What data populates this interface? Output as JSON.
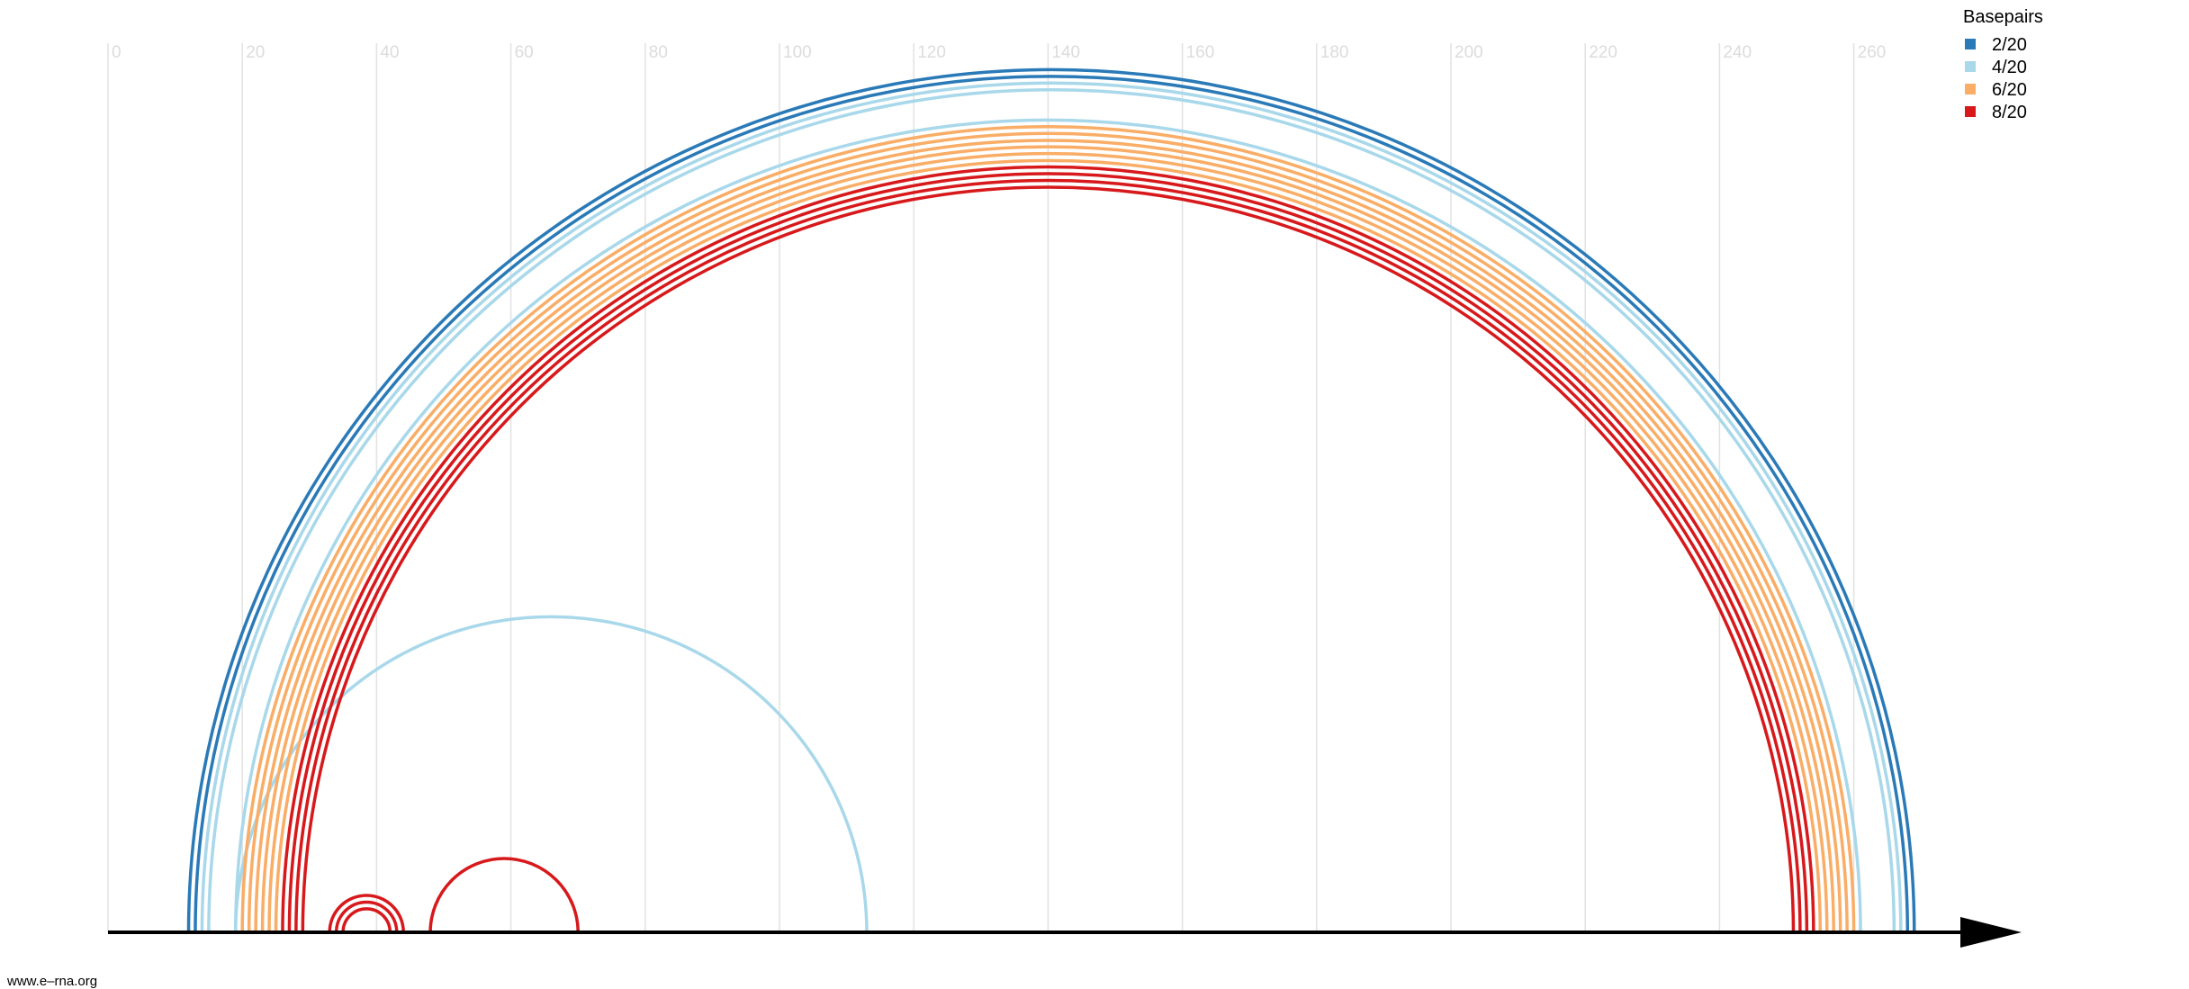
{
  "credit": "www.e–rna.org",
  "chart_data": {
    "type": "arc",
    "xlim": [
      0,
      283
    ],
    "ticks": [
      0,
      20,
      40,
      60,
      80,
      100,
      120,
      140,
      160,
      180,
      200,
      220,
      240,
      260
    ],
    "grid": true,
    "legend": {
      "title": "Basepairs",
      "placement": "top-right",
      "entries": [
        {
          "label": "2/20",
          "color": "#2a7ab8"
        },
        {
          "label": "4/20",
          "color": "#a8d8ea"
        },
        {
          "label": "6/20",
          "color": "#f9ad66"
        },
        {
          "label": "8/20",
          "color": "#d7191c"
        }
      ]
    },
    "arcs": [
      {
        "i": 12,
        "j": 269,
        "class": "2/20"
      },
      {
        "i": 13,
        "j": 268,
        "class": "2/20"
      },
      {
        "i": 14,
        "j": 267,
        "class": "4/20"
      },
      {
        "i": 15,
        "j": 266,
        "class": "4/20"
      },
      {
        "i": 19,
        "j": 261,
        "class": "4/20"
      },
      {
        "i": 19,
        "j": 113,
        "class": "4/20"
      },
      {
        "i": 20,
        "j": 260,
        "class": "6/20"
      },
      {
        "i": 21,
        "j": 259,
        "class": "6/20"
      },
      {
        "i": 22,
        "j": 258,
        "class": "6/20"
      },
      {
        "i": 23,
        "j": 257,
        "class": "6/20"
      },
      {
        "i": 24,
        "j": 256,
        "class": "6/20"
      },
      {
        "i": 25,
        "j": 255,
        "class": "6/20"
      },
      {
        "i": 26,
        "j": 254,
        "class": "8/20"
      },
      {
        "i": 27,
        "j": 253,
        "class": "8/20"
      },
      {
        "i": 28,
        "j": 252,
        "class": "8/20"
      },
      {
        "i": 29,
        "j": 251,
        "class": "8/20"
      },
      {
        "i": 33,
        "j": 44,
        "class": "8/20"
      },
      {
        "i": 34,
        "j": 43,
        "class": "8/20"
      },
      {
        "i": 35,
        "j": 42,
        "class": "8/20"
      },
      {
        "i": 48,
        "j": 70,
        "class": "8/20"
      }
    ]
  }
}
